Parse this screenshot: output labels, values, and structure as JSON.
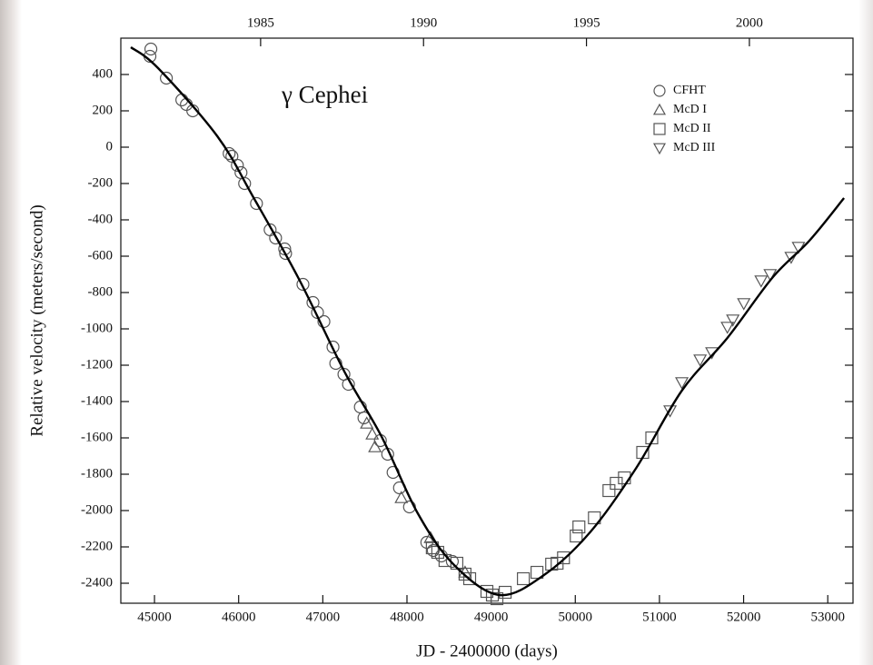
{
  "chart_data": {
    "type": "scatter",
    "title": "γ Cephei",
    "x_label": "JD - 2400000 (days)",
    "y_label": "Relative velocity (meters/second)",
    "xlim": [
      44600,
      53300
    ],
    "xticks": [
      45000,
      46000,
      47000,
      48000,
      49000,
      50000,
      51000,
      52000,
      53000
    ],
    "ylim": [
      -2510,
      600
    ],
    "yticks": [
      -2400,
      -2200,
      -2000,
      -1800,
      -1600,
      -1400,
      -1200,
      -1000,
      -800,
      -600,
      -400,
      -200,
      0,
      200,
      400
    ],
    "x2lim": [
      1980.71,
      2003.18
    ],
    "x2ticks": [
      1985,
      1990,
      1995,
      2000
    ],
    "grid": false,
    "legend": "upper right",
    "series": [
      {
        "name": "CFHT",
        "marker": "circle",
        "color": "#555555",
        "x": [
          44957,
          44946,
          45141,
          45325,
          45379,
          45455,
          45887,
          45920,
          45985,
          46028,
          46071,
          46212,
          46374,
          46439,
          46547,
          46558,
          46764,
          46883,
          46937,
          47013,
          47121,
          47154,
          47251,
          47305,
          47446,
          47489,
          47684,
          47771,
          47835,
          47911,
          48030,
          48236,
          48312,
          48409,
          48539
        ],
        "values": [
          540,
          500,
          380,
          260,
          235,
          200,
          -35,
          -50,
          -100,
          -140,
          -200,
          -310,
          -455,
          -500,
          -560,
          -585,
          -755,
          -855,
          -910,
          -960,
          -1100,
          -1190,
          -1250,
          -1305,
          -1430,
          -1490,
          -1615,
          -1690,
          -1790,
          -1875,
          -1980,
          -2175,
          -2220,
          -2250,
          -2280
        ]
      },
      {
        "name": "McD I",
        "marker": "triangle",
        "color": "#555555",
        "x": [
          47522,
          47587,
          47619,
          47933,
          48279,
          48690
        ],
        "values": [
          -1520,
          -1580,
          -1650,
          -1930,
          -2150,
          -2340
        ]
      },
      {
        "name": "McD II",
        "marker": "square",
        "color": "#555555",
        "x": [
          48301,
          48366,
          48452,
          48593,
          48690,
          48745,
          48950,
          49015,
          49069,
          49167,
          49383,
          49545,
          49719,
          49784,
          49860,
          50011,
          50043,
          50227,
          50400,
          50487,
          50584,
          50801,
          50909
        ],
        "values": [
          -2205,
          -2230,
          -2275,
          -2290,
          -2350,
          -2375,
          -2445,
          -2465,
          -2485,
          -2450,
          -2375,
          -2340,
          -2295,
          -2290,
          -2260,
          -2140,
          -2090,
          -2040,
          -1890,
          -1850,
          -1820,
          -1680,
          -1600
        ]
      },
      {
        "name": "McD III",
        "marker": "triangle-down",
        "color": "#555555",
        "x": [
          51126,
          51266,
          51483,
          51623,
          51807,
          51872,
          52002,
          52208,
          52316,
          52565,
          52652
        ],
        "values": [
          -1450,
          -1295,
          -1170,
          -1130,
          -990,
          -950,
          -860,
          -735,
          -700,
          -605,
          -550
        ]
      }
    ],
    "fit": {
      "color": "#000000",
      "x": [
        44719,
        45043,
        45747,
        46180,
        46721,
        47262,
        47695,
        48128,
        48561,
        49102,
        49643,
        50184,
        50725,
        51266,
        51807,
        52348,
        52781,
        53193
      ],
      "values": [
        550,
        435,
        60,
        -280,
        -730,
        -1240,
        -1590,
        -2015,
        -2300,
        -2465,
        -2350,
        -2115,
        -1765,
        -1340,
        -1050,
        -715,
        -515,
        -280
      ]
    }
  }
}
